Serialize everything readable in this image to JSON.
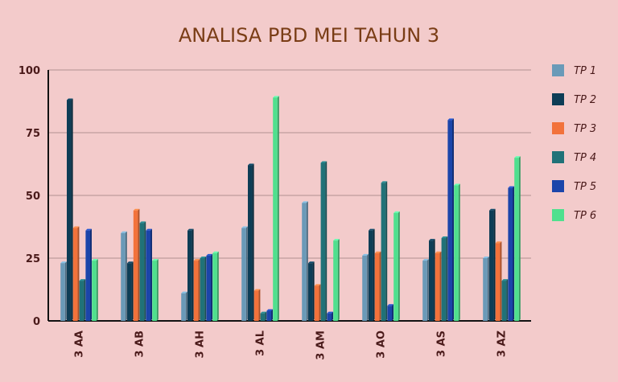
{
  "chart_data": {
    "type": "bar",
    "title": "ANALISA PBD MEI TAHUN 3",
    "xlabel": "",
    "ylabel": "",
    "ylim": [
      0,
      100
    ],
    "yticks": [
      0,
      25,
      50,
      75,
      100
    ],
    "grid": true,
    "legend_position": "right",
    "categories": [
      "3 AA",
      "3 AB",
      "3 AH",
      "3 AL",
      "3 AM",
      "3 AO",
      "3 AS",
      "3 AZ"
    ],
    "series": [
      {
        "name": "TP 1",
        "color": "#6a9ab8",
        "values": [
          23,
          35,
          11,
          37,
          47,
          26,
          24,
          25
        ]
      },
      {
        "name": "TP 2",
        "color": "#0d3d56",
        "values": [
          88,
          23,
          36,
          62,
          23,
          36,
          32,
          44
        ]
      },
      {
        "name": "TP 3",
        "color": "#f2723b",
        "values": [
          37,
          44,
          24,
          12,
          14,
          27,
          27,
          31
        ]
      },
      {
        "name": "TP 4",
        "color": "#207278",
        "values": [
          16,
          39,
          25,
          3,
          63,
          55,
          33,
          16
        ]
      },
      {
        "name": "TP 5",
        "color": "#1b45aa",
        "values": [
          36,
          36,
          26,
          4,
          3,
          6,
          80,
          53
        ]
      },
      {
        "name": "TP 6",
        "color": "#4fe08e",
        "values": [
          24,
          24,
          27,
          89,
          32,
          43,
          54,
          65
        ]
      }
    ]
  }
}
